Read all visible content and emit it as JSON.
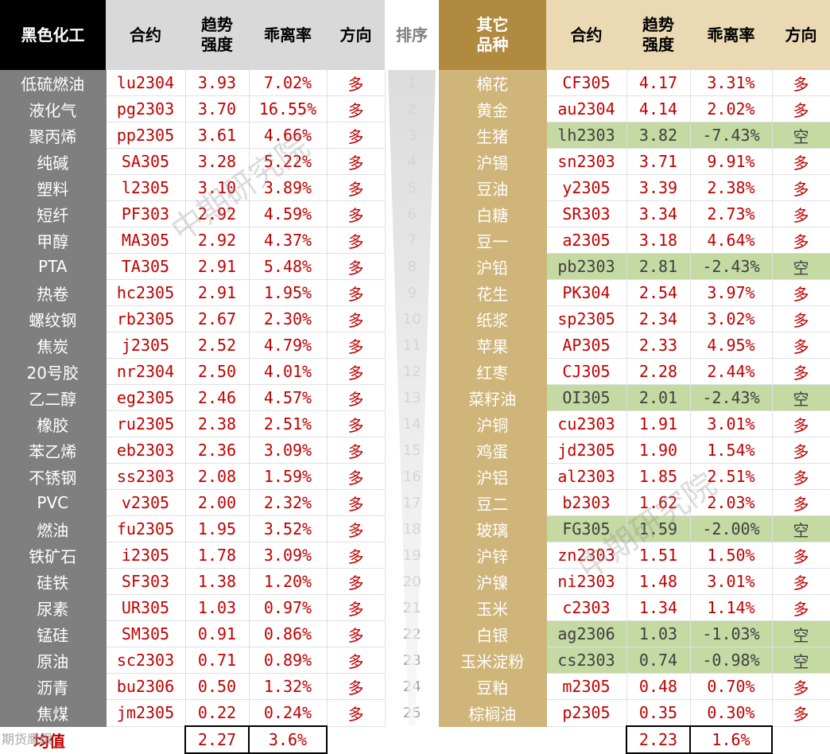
{
  "header_left": {
    "category": "黑色化工",
    "contract": "合约",
    "strength": "趋势\n强度",
    "deviation": "乖离率",
    "direction": "方向"
  },
  "header_rank": "排序",
  "header_right": {
    "category": "其它\n品种",
    "contract": "合约",
    "strength": "趋势\n强度",
    "deviation": "乖离率",
    "direction": "方向"
  },
  "rows": [
    {
      "rank": "1",
      "left": {
        "name": "低硫燃油",
        "contract": "lu2304",
        "strength": "3.93",
        "deviation": "7.02%",
        "direction": "多"
      },
      "right": {
        "name": "棉花",
        "contract": "CF305",
        "strength": "4.17",
        "deviation": "3.31%",
        "direction": "多"
      }
    },
    {
      "rank": "2",
      "left": {
        "name": "液化气",
        "contract": "pg2303",
        "strength": "3.70",
        "deviation": "16.55%",
        "direction": "多"
      },
      "right": {
        "name": "黄金",
        "contract": "au2304",
        "strength": "4.14",
        "deviation": "2.02%",
        "direction": "多"
      }
    },
    {
      "rank": "3",
      "left": {
        "name": "聚丙烯",
        "contract": "pp2305",
        "strength": "3.61",
        "deviation": "4.66%",
        "direction": "多"
      },
      "right": {
        "name": "生猪",
        "contract": "lh2303",
        "strength": "3.82",
        "deviation": "-7.43%",
        "direction": "空"
      }
    },
    {
      "rank": "4",
      "left": {
        "name": "纯碱",
        "contract": "SA305",
        "strength": "3.28",
        "deviation": "5.22%",
        "direction": "多"
      },
      "right": {
        "name": "沪锡",
        "contract": "sn2303",
        "strength": "3.71",
        "deviation": "9.91%",
        "direction": "多"
      }
    },
    {
      "rank": "5",
      "left": {
        "name": "塑料",
        "contract": "l2305",
        "strength": "3.10",
        "deviation": "3.89%",
        "direction": "多"
      },
      "right": {
        "name": "豆油",
        "contract": "y2305",
        "strength": "3.39",
        "deviation": "2.38%",
        "direction": "多"
      }
    },
    {
      "rank": "6",
      "left": {
        "name": "短纤",
        "contract": "PF303",
        "strength": "2.92",
        "deviation": "4.59%",
        "direction": "多"
      },
      "right": {
        "name": "白糖",
        "contract": "SR303",
        "strength": "3.34",
        "deviation": "2.73%",
        "direction": "多"
      }
    },
    {
      "rank": "7",
      "left": {
        "name": "甲醇",
        "contract": "MA305",
        "strength": "2.92",
        "deviation": "4.37%",
        "direction": "多"
      },
      "right": {
        "name": "豆一",
        "contract": "a2305",
        "strength": "3.18",
        "deviation": "4.64%",
        "direction": "多"
      }
    },
    {
      "rank": "8",
      "left": {
        "name": "PTA",
        "contract": "TA305",
        "strength": "2.91",
        "deviation": "5.48%",
        "direction": "多"
      },
      "right": {
        "name": "沪铅",
        "contract": "pb2303",
        "strength": "2.81",
        "deviation": "-2.43%",
        "direction": "空"
      }
    },
    {
      "rank": "9",
      "left": {
        "name": "热卷",
        "contract": "hc2305",
        "strength": "2.91",
        "deviation": "1.95%",
        "direction": "多"
      },
      "right": {
        "name": "花生",
        "contract": "PK304",
        "strength": "2.54",
        "deviation": "3.97%",
        "direction": "多"
      }
    },
    {
      "rank": "10",
      "left": {
        "name": "螺纹钢",
        "contract": "rb2305",
        "strength": "2.67",
        "deviation": "2.30%",
        "direction": "多"
      },
      "right": {
        "name": "纸浆",
        "contract": "sp2305",
        "strength": "2.34",
        "deviation": "3.02%",
        "direction": "多"
      }
    },
    {
      "rank": "11",
      "left": {
        "name": "焦炭",
        "contract": "j2305",
        "strength": "2.52",
        "deviation": "4.79%",
        "direction": "多"
      },
      "right": {
        "name": "苹果",
        "contract": "AP305",
        "strength": "2.33",
        "deviation": "4.95%",
        "direction": "多"
      }
    },
    {
      "rank": "12",
      "left": {
        "name": "20号胶",
        "contract": "nr2304",
        "strength": "2.50",
        "deviation": "4.01%",
        "direction": "多"
      },
      "right": {
        "name": "红枣",
        "contract": "CJ305",
        "strength": "2.28",
        "deviation": "2.44%",
        "direction": "多"
      }
    },
    {
      "rank": "13",
      "left": {
        "name": "乙二醇",
        "contract": "eg2305",
        "strength": "2.46",
        "deviation": "4.57%",
        "direction": "多"
      },
      "right": {
        "name": "菜籽油",
        "contract": "OI305",
        "strength": "2.01",
        "deviation": "-2.43%",
        "direction": "空"
      }
    },
    {
      "rank": "14",
      "left": {
        "name": "橡胶",
        "contract": "ru2305",
        "strength": "2.38",
        "deviation": "2.51%",
        "direction": "多"
      },
      "right": {
        "name": "沪铜",
        "contract": "cu2303",
        "strength": "1.91",
        "deviation": "3.01%",
        "direction": "多"
      }
    },
    {
      "rank": "15",
      "left": {
        "name": "苯乙烯",
        "contract": "eb2303",
        "strength": "2.36",
        "deviation": "3.09%",
        "direction": "多"
      },
      "right": {
        "name": "鸡蛋",
        "contract": "jd2305",
        "strength": "1.90",
        "deviation": "1.54%",
        "direction": "多"
      }
    },
    {
      "rank": "16",
      "left": {
        "name": "不锈钢",
        "contract": "ss2303",
        "strength": "2.08",
        "deviation": "1.59%",
        "direction": "多"
      },
      "right": {
        "name": "沪铝",
        "contract": "al2303",
        "strength": "1.85",
        "deviation": "2.51%",
        "direction": "多"
      }
    },
    {
      "rank": "17",
      "left": {
        "name": "PVC",
        "contract": "v2305",
        "strength": "2.00",
        "deviation": "2.32%",
        "direction": "多"
      },
      "right": {
        "name": "豆二",
        "contract": "b2303",
        "strength": "1.62",
        "deviation": "2.03%",
        "direction": "多"
      }
    },
    {
      "rank": "18",
      "left": {
        "name": "燃油",
        "contract": "fu2305",
        "strength": "1.95",
        "deviation": "3.52%",
        "direction": "多"
      },
      "right": {
        "name": "玻璃",
        "contract": "FG305",
        "strength": "1.59",
        "deviation": "-2.00%",
        "direction": "空"
      }
    },
    {
      "rank": "19",
      "left": {
        "name": "铁矿石",
        "contract": "i2305",
        "strength": "1.78",
        "deviation": "3.09%",
        "direction": "多"
      },
      "right": {
        "name": "沪锌",
        "contract": "zn2303",
        "strength": "1.51",
        "deviation": "1.50%",
        "direction": "多"
      }
    },
    {
      "rank": "20",
      "left": {
        "name": "硅铁",
        "contract": "SF303",
        "strength": "1.38",
        "deviation": "1.20%",
        "direction": "多"
      },
      "right": {
        "name": "沪镍",
        "contract": "ni2303",
        "strength": "1.48",
        "deviation": "3.01%",
        "direction": "多"
      }
    },
    {
      "rank": "21",
      "left": {
        "name": "尿素",
        "contract": "UR305",
        "strength": "1.03",
        "deviation": "0.97%",
        "direction": "多"
      },
      "right": {
        "name": "玉米",
        "contract": "c2303",
        "strength": "1.34",
        "deviation": "1.14%",
        "direction": "多"
      }
    },
    {
      "rank": "22",
      "left": {
        "name": "锰硅",
        "contract": "SM305",
        "strength": "0.91",
        "deviation": "0.86%",
        "direction": "多"
      },
      "right": {
        "name": "白银",
        "contract": "ag2306",
        "strength": "1.03",
        "deviation": "-1.03%",
        "direction": "空"
      }
    },
    {
      "rank": "23",
      "left": {
        "name": "原油",
        "contract": "sc2303",
        "strength": "0.71",
        "deviation": "0.89%",
        "direction": "多"
      },
      "right": {
        "name": "玉米淀粉",
        "contract": "cs2303",
        "strength": "0.74",
        "deviation": "-0.98%",
        "direction": "空"
      }
    },
    {
      "rank": "24",
      "left": {
        "name": "沥青",
        "contract": "bu2306",
        "strength": "0.50",
        "deviation": "1.32%",
        "direction": "多"
      },
      "right": {
        "name": "豆粕",
        "contract": "m2305",
        "strength": "0.48",
        "deviation": "0.70%",
        "direction": "多"
      }
    },
    {
      "rank": "25",
      "left": {
        "name": "焦煤",
        "contract": "jm2305",
        "strength": "0.22",
        "deviation": "0.24%",
        "direction": "多"
      },
      "right": {
        "name": "棕榈油",
        "contract": "p2305",
        "strength": "0.35",
        "deviation": "0.30%",
        "direction": "多"
      }
    }
  ],
  "footer": {
    "label": "均值",
    "left_strength": "2.27",
    "left_deviation": "3.6%",
    "right_strength": "2.23",
    "right_deviation": "1.6%"
  },
  "watermark_text": "中期研究院",
  "corner_stamp": "期货鹰眼",
  "colors": {
    "long": "#c00000",
    "short_bg": "#c5d9a3",
    "left_name_bg": "#7f7f7f",
    "right_name_bg": "#cfb57a",
    "header_black": "#000000",
    "header_gold": "#b08a3e"
  }
}
